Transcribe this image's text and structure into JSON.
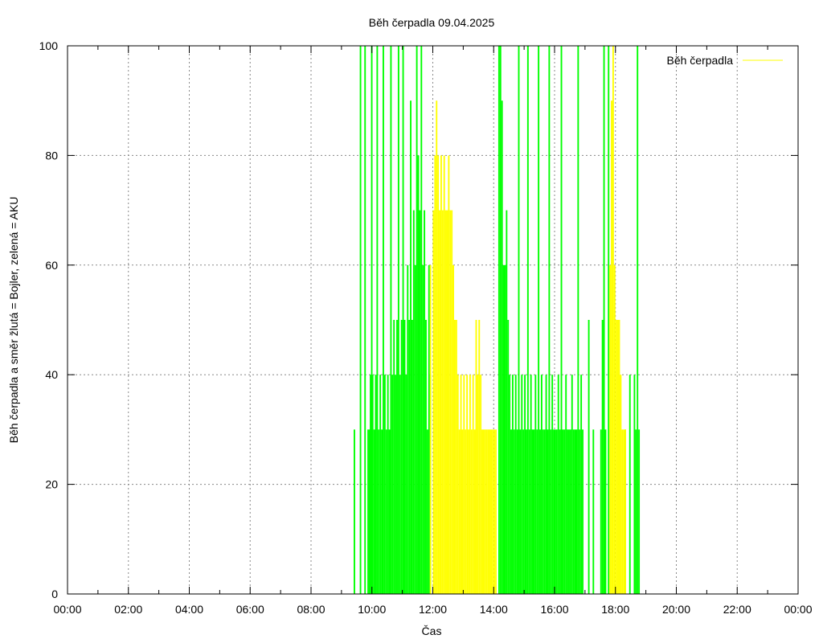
{
  "chart_data": {
    "type": "bar",
    "title": "Běh čerpadla 09.04.2025",
    "xlabel": "Čas",
    "ylabel": "Běh čerpadla a směr žlutá = Bojler, zelená = AKU",
    "xlim": [
      0,
      24
    ],
    "ylim": [
      0,
      100
    ],
    "x_ticks": [
      "00:00",
      "02:00",
      "04:00",
      "06:00",
      "08:00",
      "10:00",
      "12:00",
      "14:00",
      "16:00",
      "18:00",
      "20:00",
      "22:00",
      "00:00"
    ],
    "y_ticks": [
      "0",
      "20",
      "40",
      "60",
      "80",
      "100"
    ],
    "grid": true,
    "legend": {
      "placement": "top-right",
      "label": "Běh čerpadla",
      "color": "#ffff00"
    },
    "colors": {
      "green": "#00ff00",
      "yellow": "#ffff00"
    },
    "series": [
      {
        "color": "#00ff00",
        "points": [
          [
            9.4,
            30
          ],
          [
            9.6,
            100
          ],
          [
            9.75,
            100
          ],
          [
            9.85,
            30
          ],
          [
            9.9,
            30
          ],
          [
            9.93,
            40
          ],
          [
            9.97,
            100
          ],
          [
            10.0,
            40
          ],
          [
            10.05,
            30
          ],
          [
            10.1,
            40
          ],
          [
            10.15,
            100
          ],
          [
            10.2,
            30
          ],
          [
            10.25,
            40
          ],
          [
            10.3,
            30
          ],
          [
            10.35,
            100
          ],
          [
            10.4,
            40
          ],
          [
            10.45,
            30
          ],
          [
            10.5,
            40
          ],
          [
            10.55,
            30
          ],
          [
            10.6,
            100
          ],
          [
            10.65,
            40
          ],
          [
            10.7,
            50
          ],
          [
            10.75,
            40
          ],
          [
            10.8,
            50
          ],
          [
            10.85,
            100
          ],
          [
            10.9,
            40
          ],
          [
            10.95,
            50
          ],
          [
            11.0,
            100
          ],
          [
            11.05,
            50
          ],
          [
            11.1,
            40
          ],
          [
            11.15,
            60
          ],
          [
            11.2,
            50
          ],
          [
            11.25,
            90
          ],
          [
            11.3,
            50
          ],
          [
            11.35,
            70
          ],
          [
            11.4,
            60
          ],
          [
            11.45,
            100
          ],
          [
            11.5,
            80
          ],
          [
            11.55,
            70
          ],
          [
            11.6,
            100
          ],
          [
            11.65,
            60
          ],
          [
            11.7,
            70
          ],
          [
            11.75,
            50
          ],
          [
            11.8,
            30
          ],
          [
            11.85,
            60
          ],
          [
            11.9,
            40
          ],
          [
            14.15,
            100
          ],
          [
            14.2,
            100
          ],
          [
            14.25,
            90
          ],
          [
            14.3,
            60
          ],
          [
            14.35,
            60
          ],
          [
            14.4,
            70
          ],
          [
            14.45,
            50
          ],
          [
            14.5,
            40
          ],
          [
            14.55,
            30
          ],
          [
            14.6,
            40
          ],
          [
            14.65,
            30
          ],
          [
            14.7,
            40
          ],
          [
            14.75,
            30
          ],
          [
            14.8,
            100
          ],
          [
            14.85,
            30
          ],
          [
            14.9,
            40
          ],
          [
            14.95,
            30
          ],
          [
            15.0,
            40
          ],
          [
            15.05,
            30
          ],
          [
            15.1,
            100
          ],
          [
            15.15,
            30
          ],
          [
            15.2,
            40
          ],
          [
            15.25,
            30
          ],
          [
            15.3,
            30
          ],
          [
            15.35,
            40
          ],
          [
            15.4,
            30
          ],
          [
            15.45,
            100
          ],
          [
            15.5,
            30
          ],
          [
            15.55,
            40
          ],
          [
            15.6,
            30
          ],
          [
            15.65,
            30
          ],
          [
            15.7,
            40
          ],
          [
            15.75,
            30
          ],
          [
            15.8,
            100
          ],
          [
            15.85,
            30
          ],
          [
            15.9,
            40
          ],
          [
            15.95,
            30
          ],
          [
            16.0,
            30
          ],
          [
            16.05,
            30
          ],
          [
            16.1,
            40
          ],
          [
            16.15,
            30
          ],
          [
            16.2,
            100
          ],
          [
            16.25,
            30
          ],
          [
            16.3,
            30
          ],
          [
            16.35,
            40
          ],
          [
            16.4,
            30
          ],
          [
            16.45,
            30
          ],
          [
            16.5,
            30
          ],
          [
            16.55,
            40
          ],
          [
            16.6,
            30
          ],
          [
            16.65,
            30
          ],
          [
            16.7,
            30
          ],
          [
            16.75,
            100
          ],
          [
            16.8,
            30
          ],
          [
            16.85,
            40
          ],
          [
            16.9,
            30
          ],
          [
            17.1,
            50
          ],
          [
            17.25,
            30
          ],
          [
            17.5,
            30
          ],
          [
            17.55,
            50
          ],
          [
            17.6,
            100
          ],
          [
            17.65,
            30
          ],
          [
            17.75,
            100
          ],
          [
            18.3,
            30
          ],
          [
            18.45,
            40
          ],
          [
            18.6,
            40
          ],
          [
            18.65,
            30
          ],
          [
            18.7,
            100
          ],
          [
            18.75,
            30
          ]
        ]
      },
      {
        "color": "#ffff00",
        "points": [
          [
            11.9,
            60
          ],
          [
            12.0,
            70
          ],
          [
            12.05,
            80
          ],
          [
            12.1,
            90
          ],
          [
            12.15,
            80
          ],
          [
            12.2,
            70
          ],
          [
            12.25,
            80
          ],
          [
            12.3,
            70
          ],
          [
            12.35,
            80
          ],
          [
            12.4,
            70
          ],
          [
            12.45,
            70
          ],
          [
            12.5,
            80
          ],
          [
            12.55,
            70
          ],
          [
            12.6,
            70
          ],
          [
            12.65,
            60
          ],
          [
            12.7,
            50
          ],
          [
            12.75,
            50
          ],
          [
            12.8,
            40
          ],
          [
            12.85,
            30
          ],
          [
            12.9,
            40
          ],
          [
            12.95,
            30
          ],
          [
            13.0,
            40
          ],
          [
            13.05,
            30
          ],
          [
            13.1,
            40
          ],
          [
            13.15,
            30
          ],
          [
            13.2,
            40
          ],
          [
            13.25,
            30
          ],
          [
            13.3,
            40
          ],
          [
            13.35,
            30
          ],
          [
            13.4,
            50
          ],
          [
            13.45,
            40
          ],
          [
            13.5,
            50
          ],
          [
            13.55,
            40
          ],
          [
            13.6,
            30
          ],
          [
            13.65,
            30
          ],
          [
            13.7,
            30
          ],
          [
            13.75,
            30
          ],
          [
            13.8,
            30
          ],
          [
            13.85,
            30
          ],
          [
            13.9,
            30
          ],
          [
            13.95,
            30
          ],
          [
            14.0,
            30
          ],
          [
            14.05,
            30
          ],
          [
            17.8,
            60
          ],
          [
            17.85,
            90
          ],
          [
            17.9,
            100
          ],
          [
            17.95,
            60
          ],
          [
            18.0,
            50
          ],
          [
            18.05,
            50
          ],
          [
            18.1,
            50
          ],
          [
            18.15,
            40
          ],
          [
            18.2,
            30
          ],
          [
            18.25,
            30
          ],
          [
            18.3,
            30
          ]
        ]
      }
    ]
  }
}
